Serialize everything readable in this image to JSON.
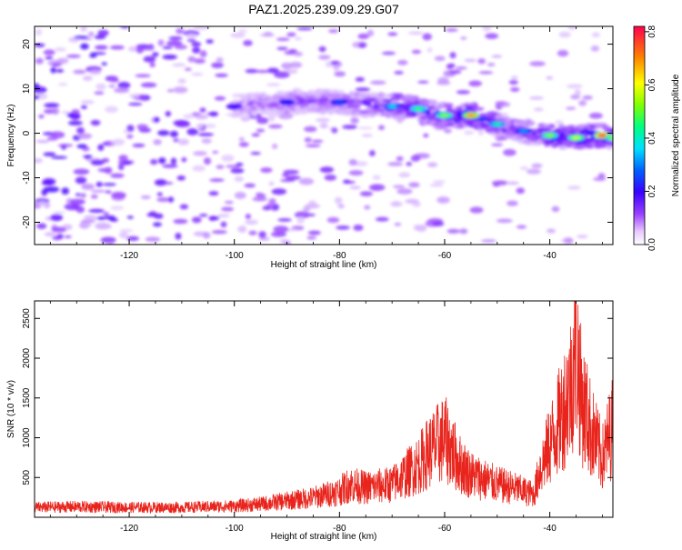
{
  "title": "PAZ1.2025.239.09.29.G07",
  "chart_data": [
    {
      "type": "heatmap",
      "xlabel": "Height of straight line (km)",
      "ylabel": "Frequency (Hz)",
      "xlim": [
        -138,
        -28
      ],
      "ylim": [
        -25,
        24
      ],
      "xticks": [
        -120,
        -100,
        -80,
        -60,
        -40
      ],
      "yticks": [
        -20,
        -10,
        0,
        10,
        20
      ],
      "colorbar": {
        "label": "Normalized spectral amplitude",
        "range": [
          0.0,
          0.82
        ],
        "ticks": [
          0.0,
          0.2,
          0.4,
          0.6,
          0.8
        ]
      },
      "ridge": {
        "description": "dominant frequency track",
        "x": [
          -100,
          -90,
          -80,
          -70,
          -65,
          -60,
          -55,
          -50,
          -45,
          -40,
          -35,
          -30,
          -28
        ],
        "y": [
          6,
          7,
          7,
          6,
          5.5,
          4,
          4,
          2,
          0.5,
          -0.5,
          -1,
          -0.5,
          -1
        ],
        "peak_amplitude": [
          0.25,
          0.3,
          0.35,
          0.45,
          0.55,
          0.6,
          0.75,
          0.5,
          0.4,
          0.6,
          0.65,
          0.8,
          0.6
        ]
      }
    },
    {
      "type": "line",
      "xlabel": "Height of straight line (km)",
      "ylabel": "SNR (10 * v/v)",
      "xlim": [
        -138,
        -28
      ],
      "ylim": [
        0,
        2720
      ],
      "xticks": [
        -120,
        -100,
        -80,
        -60,
        -40
      ],
      "yticks": [
        500,
        1000,
        1500,
        2000,
        2500
      ],
      "series": [
        {
          "color": "#e8241c",
          "x": [
            -138,
            -130,
            -120,
            -110,
            -100,
            -95,
            -90,
            -85,
            -80,
            -78,
            -75,
            -70,
            -65,
            -63,
            -60,
            -57,
            -55,
            -50,
            -47,
            -45,
            -43,
            -42,
            -40,
            -38,
            -36,
            -35,
            -34,
            -32,
            -30,
            -28
          ],
          "y": [
            150,
            160,
            150,
            150,
            170,
            200,
            250,
            300,
            400,
            500,
            450,
            500,
            800,
            1000,
            1200,
            800,
            650,
            500,
            450,
            400,
            350,
            700,
            1100,
            1500,
            2000,
            2700,
            1800,
            1300,
            900,
            1400
          ]
        }
      ]
    }
  ]
}
